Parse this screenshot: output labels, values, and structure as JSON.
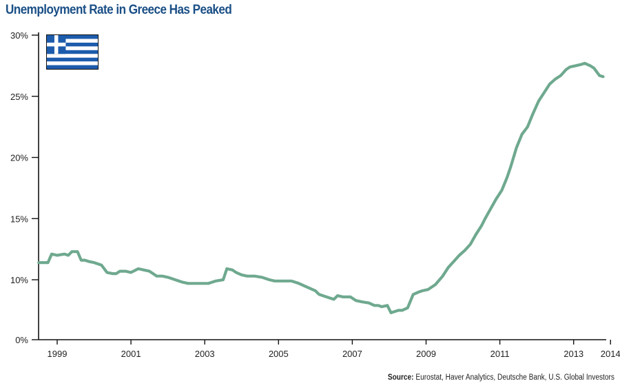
{
  "chart_data": {
    "type": "line",
    "title": "Unemployment Rate in Greece Has Peaked",
    "xlabel": "",
    "ylabel": "",
    "x_ticks": [
      "1999",
      "2001",
      "2003",
      "2005",
      "2007",
      "2009",
      "2011",
      "2013",
      "2014"
    ],
    "x_tick_values": [
      1999,
      2001,
      2003,
      2005,
      2007,
      2009,
      2011,
      2013,
      2014
    ],
    "y_ticks": [
      "0%",
      "10%",
      "15%",
      "20%",
      "25%",
      "30%"
    ],
    "y_tick_values": [
      0,
      10,
      15,
      20,
      25,
      30
    ],
    "y_axis_note": "broken axis between 0% and 10%",
    "xlim": [
      1998.5,
      2014.1
    ],
    "ylim": [
      0,
      30
    ],
    "grid": false,
    "series": [
      {
        "name": "Greece unemployment rate",
        "color": "#6fa98f",
        "x": [
          1998.5,
          1998.75,
          1998.85,
          1999.0,
          1999.2,
          1999.3,
          1999.4,
          1999.55,
          1999.65,
          1999.75,
          1999.85,
          2000.0,
          2000.2,
          2000.35,
          2000.5,
          2000.6,
          2000.7,
          2000.85,
          2001.0,
          2001.2,
          2001.35,
          2001.5,
          2001.7,
          2001.85,
          2002.0,
          2002.2,
          2002.4,
          2002.55,
          2002.75,
          2002.9,
          2003.1,
          2003.3,
          2003.5,
          2003.6,
          2003.75,
          2003.85,
          2004.0,
          2004.15,
          2004.35,
          2004.55,
          2004.75,
          2004.9,
          2005.1,
          2005.35,
          2005.55,
          2005.7,
          2005.85,
          2006.0,
          2006.1,
          2006.3,
          2006.5,
          2006.6,
          2006.75,
          2006.95,
          2007.1,
          2007.25,
          2007.45,
          2007.6,
          2007.7,
          2007.8,
          2007.95,
          2008.05,
          2008.15,
          2008.25,
          2008.35,
          2008.5,
          2008.65,
          2008.8,
          2008.9,
          2009.05,
          2009.25,
          2009.45,
          2009.6,
          2009.75,
          2009.9,
          2010.05,
          2010.2,
          2010.35,
          2010.5,
          2010.6,
          2010.75,
          2010.9,
          2011.05,
          2011.2,
          2011.3,
          2011.45,
          2011.6,
          2011.75,
          2011.9,
          2012.05,
          2012.2,
          2012.35,
          2012.5,
          2012.65,
          2012.8,
          2012.9,
          2013.05,
          2013.2,
          2013.3,
          2013.45,
          2013.55,
          2013.7,
          2013.8
        ],
        "values": [
          11.4,
          11.4,
          12.1,
          12.0,
          12.1,
          12.0,
          12.3,
          12.3,
          11.6,
          11.6,
          11.5,
          11.4,
          11.2,
          10.6,
          10.5,
          10.5,
          10.7,
          10.7,
          10.6,
          10.9,
          10.8,
          10.7,
          10.3,
          10.3,
          10.2,
          10.0,
          9.8,
          9.7,
          9.7,
          9.7,
          9.7,
          9.9,
          10.0,
          10.9,
          10.8,
          10.6,
          10.4,
          10.3,
          10.3,
          10.2,
          10.0,
          9.9,
          9.9,
          9.9,
          9.7,
          9.5,
          9.3,
          9.1,
          8.8,
          8.6,
          8.4,
          8.7,
          8.6,
          8.6,
          8.3,
          8.2,
          8.1,
          7.9,
          7.9,
          7.8,
          7.9,
          7.3,
          7.4,
          7.5,
          7.5,
          7.7,
          8.8,
          9.0,
          9.1,
          9.2,
          9.6,
          10.3,
          11.0,
          11.5,
          12.0,
          12.4,
          12.9,
          13.7,
          14.4,
          15.0,
          15.8,
          16.6,
          17.3,
          18.4,
          19.3,
          20.8,
          21.9,
          22.5,
          23.6,
          24.6,
          25.3,
          26.0,
          26.4,
          26.7,
          27.2,
          27.4,
          27.5,
          27.6,
          27.7,
          27.5,
          27.3,
          26.7,
          26.6
        ]
      }
    ],
    "flag_icon": "greece-flag-icon",
    "flag_colors": {
      "blue": "#1d5cac",
      "white": "#ffffff"
    },
    "axis_color": "#111111"
  },
  "source": {
    "label": "Source:",
    "text": " Eurostat, Haver Analytics, Deutsche Bank, U.S. Global Investors"
  }
}
